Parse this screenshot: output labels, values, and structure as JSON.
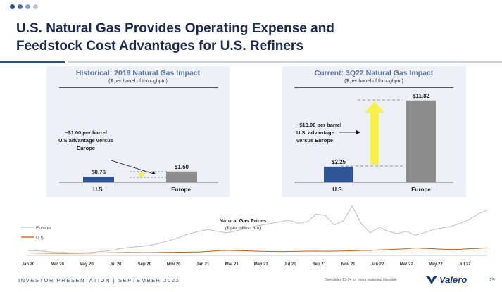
{
  "header": {
    "title_line1": "U.S. Natural Gas Provides Operating Expense and",
    "title_line2": "Feedstock Cost Advantages for U.S. Refiners",
    "dot_colors": [
      "#2e4d87",
      "#4f6fa8",
      "#8aa0c7",
      "#b9c6dd"
    ]
  },
  "chart_data": [
    {
      "type": "bar",
      "title": "Historical: 2019 Natural Gas Impact",
      "subtitle": "($ per barrel of throughput)",
      "categories": [
        "U.S.",
        "Europe"
      ],
      "values": [
        0.76,
        1.5
      ],
      "value_labels": [
        "$0.76",
        "$1.50"
      ],
      "bar_colors": [
        "#2f5597",
        "#8c8c8c"
      ],
      "annotation": [
        "~$1.00 per barrel",
        "U.S advantage versus",
        "Europe"
      ],
      "ylim": [
        0,
        12
      ]
    },
    {
      "type": "bar",
      "title": "Current: 3Q22 Natural Gas Impact",
      "subtitle": "($ per barrel of throughput)",
      "categories": [
        "U.S.",
        "Europe"
      ],
      "values": [
        2.25,
        11.82
      ],
      "value_labels": [
        "$2.25",
        "$11.82"
      ],
      "bar_colors": [
        "#2f5597",
        "#8c8c8c"
      ],
      "annotation": [
        "~$10.00 per barrel",
        "U.S. advantage",
        "versus Europe"
      ],
      "ylim": [
        0,
        12
      ]
    },
    {
      "type": "line",
      "title": "Natural Gas Prices",
      "subtitle": "($ per million Btu)",
      "x_ticks": [
        "Jan 20",
        "Mar 20",
        "May 20",
        "Jul 20",
        "Sep 20",
        "Nov 20",
        "Jan 21",
        "Mar 21",
        "May 21",
        "Jul 21",
        "Sep 21",
        "Nov 21",
        "Jan 22",
        "Mar 22",
        "May 22",
        "Jul 22"
      ],
      "legend": "top-left",
      "ylim": [
        0,
        70
      ],
      "series": [
        {
          "name": "Europe",
          "color": "#bfbfbf",
          "values": [
            5,
            5,
            4,
            3,
            3,
            2,
            2,
            3,
            4,
            5,
            7,
            9,
            10,
            11,
            13,
            16,
            19,
            23,
            27,
            30,
            32,
            30,
            28,
            30,
            33,
            36,
            38,
            40,
            42,
            44,
            40,
            42,
            52,
            50,
            38,
            43,
            62,
            40,
            28,
            35,
            30,
            27,
            30,
            25,
            28,
            32,
            34,
            36,
            40,
            45,
            52,
            57
          ]
        },
        {
          "name": "U.S.",
          "color": "#c55a11",
          "values": [
            2.2,
            2,
            1.9,
            1.8,
            1.7,
            1.8,
            1.9,
            2,
            2.2,
            2.4,
            2.6,
            2.8,
            2.7,
            2.6,
            2.7,
            2.9,
            3,
            3.1,
            3.2,
            3.5,
            4,
            5,
            5.5,
            5.2,
            5,
            4.6,
            4.2,
            4,
            3.8,
            4,
            4.3,
            4.5,
            4.6,
            4.4,
            4.5,
            4.8,
            5,
            5.3,
            5.5,
            6,
            6.5,
            7,
            7.5,
            8.5,
            8,
            7.5,
            7,
            6.5,
            6.8,
            7.5,
            8,
            8.8
          ]
        }
      ]
    }
  ],
  "footer": {
    "left": "INVESTOR PRESENTATION | SEPTEMBER 2022",
    "note": "See slides 23-24 for notes regarding this slide.",
    "logo": "Valero",
    "page": "29"
  }
}
